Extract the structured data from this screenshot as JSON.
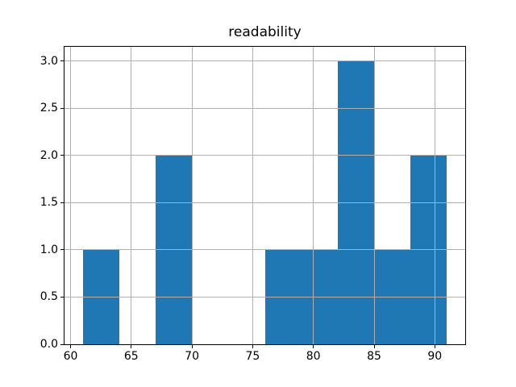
{
  "figure": {
    "background": "#ffffff"
  },
  "chart_data": {
    "type": "bar",
    "subtype": "histogram",
    "title": "readability",
    "xlabel": "",
    "ylabel": "",
    "bin_edges": [
      61,
      64,
      67,
      70,
      73,
      76,
      79,
      82,
      85,
      88,
      91
    ],
    "counts": [
      1,
      0,
      2,
      0,
      0,
      1,
      1,
      3,
      1,
      2
    ],
    "xlim": [
      59.5,
      92.5
    ],
    "ylim": [
      0,
      3.15
    ],
    "xticks": [
      60,
      65,
      70,
      75,
      80,
      85,
      90
    ],
    "xtick_labels": [
      "60",
      "65",
      "70",
      "75",
      "80",
      "85",
      "90"
    ],
    "yticks": [
      0,
      0.5,
      1,
      1.5,
      2,
      2.5,
      3
    ],
    "ytick_labels": [
      "0.0",
      "0.5",
      "1.0",
      "1.5",
      "2.0",
      "2.5",
      "3.0"
    ],
    "grid": true,
    "grid_above_bars": true,
    "legend": false,
    "bar_color": "#1f77b4",
    "grid_color": "#b0b0b0",
    "axis_color": "#000000",
    "text_color": "#000000"
  }
}
